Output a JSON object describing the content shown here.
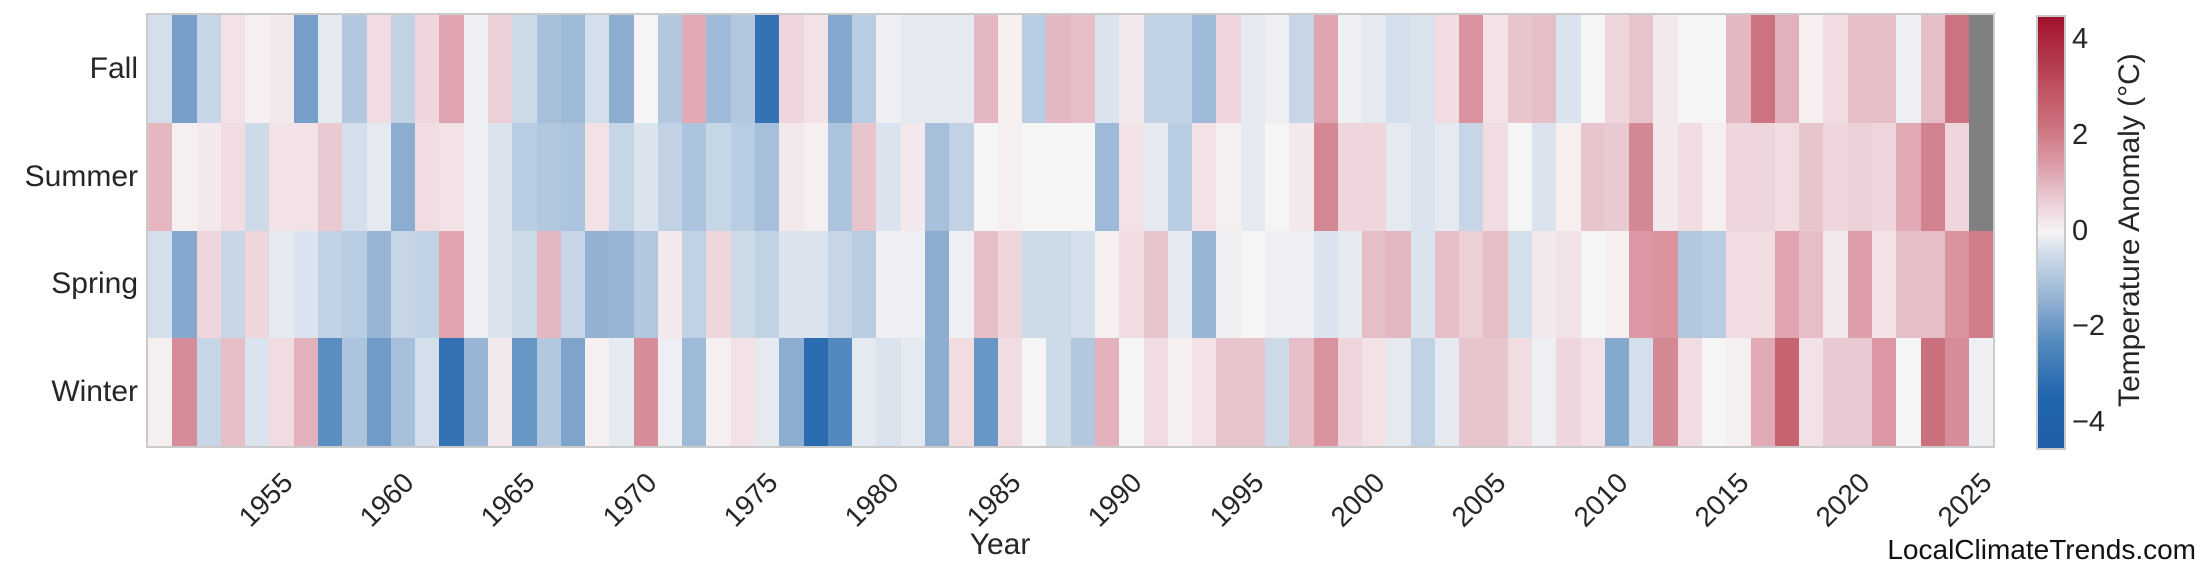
{
  "watermark": "LocalClimateTrends.com",
  "chart_data": {
    "type": "heatmap",
    "title": "",
    "xlabel": "Year",
    "rows": [
      "Fall",
      "Summer",
      "Spring",
      "Winter"
    ],
    "year_start": 1950,
    "year_end": 2025,
    "x_tick_labels": [
      "1955",
      "1960",
      "1965",
      "1970",
      "1975",
      "1980",
      "1985",
      "1990",
      "1995",
      "2000",
      "2005",
      "2010",
      "2015",
      "2020",
      "2025"
    ],
    "x_tick_years": [
      1955,
      1960,
      1965,
      1970,
      1975,
      1980,
      1985,
      1990,
      1995,
      2000,
      2005,
      2010,
      2015,
      2020,
      2025
    ],
    "series": [
      {
        "name": "Fall",
        "values": [
          -0.4,
          -1.8,
          -0.6,
          0.3,
          0.1,
          0.2,
          -1.8,
          -0.2,
          -0.9,
          0.4,
          -0.7,
          0.5,
          1.3,
          -0.1,
          0.6,
          -0.5,
          -1.1,
          -1.2,
          -0.4,
          -1.5,
          0.0,
          -0.9,
          1.2,
          -1.2,
          -0.9,
          -3.0,
          0.5,
          0.3,
          -1.6,
          -0.8,
          -0.1,
          -0.2,
          -0.2,
          -0.2,
          1.0,
          0.1,
          -0.8,
          1.0,
          0.9,
          -0.3,
          0.2,
          -0.7,
          -0.7,
          -1.2,
          0.5,
          -0.2,
          -0.1,
          -0.6,
          1.3,
          -0.1,
          -0.2,
          -0.4,
          -0.3,
          0.4,
          1.6,
          0.3,
          0.8,
          0.9,
          -0.3,
          0.0,
          0.5,
          0.8,
          0.2,
          0.0,
          0.0,
          1.0,
          2.2,
          1.1,
          0.1,
          0.4,
          0.9,
          0.9,
          -0.1,
          0.9,
          2.2,
          null
        ]
      },
      {
        "name": "Summer",
        "values": [
          1.0,
          0.1,
          0.2,
          0.4,
          -0.5,
          0.3,
          0.3,
          0.7,
          -0.4,
          -0.2,
          -1.5,
          0.4,
          0.3,
          -0.1,
          -0.3,
          -0.8,
          -0.9,
          -1.0,
          0.3,
          -0.6,
          -0.3,
          -0.7,
          -1.0,
          -0.6,
          -0.8,
          -1.1,
          0.2,
          0.1,
          -1.0,
          0.8,
          -0.3,
          0.2,
          -1.1,
          -0.7,
          0.0,
          0.1,
          0.0,
          0.0,
          0.0,
          -1.2,
          0.3,
          -0.2,
          -0.8,
          0.3,
          0.1,
          -0.2,
          0.0,
          0.2,
          1.8,
          0.5,
          0.5,
          -0.2,
          -0.3,
          -0.2,
          -0.6,
          0.4,
          0.0,
          -0.3,
          0.1,
          0.8,
          0.7,
          1.8,
          0.2,
          0.4,
          0.1,
          0.5,
          0.5,
          0.4,
          0.8,
          0.5,
          0.6,
          0.5,
          1.2,
          1.9,
          0.5,
          null
        ]
      },
      {
        "name": "Spring",
        "values": [
          -0.4,
          -1.6,
          0.5,
          -0.6,
          0.5,
          -0.2,
          -0.3,
          -0.7,
          -0.8,
          -1.3,
          -0.6,
          -0.7,
          1.3,
          -0.1,
          -0.3,
          -0.5,
          1.0,
          -0.6,
          -1.4,
          -1.3,
          -0.9,
          0.2,
          -0.7,
          0.5,
          -0.5,
          -0.7,
          -0.3,
          -0.3,
          -0.6,
          -0.8,
          -0.1,
          -0.1,
          -1.5,
          -0.1,
          0.9,
          0.5,
          -0.5,
          -0.5,
          -0.4,
          0.1,
          0.4,
          0.8,
          -0.2,
          -1.3,
          -0.1,
          0.0,
          -0.1,
          -0.1,
          -0.3,
          -0.2,
          0.9,
          1.0,
          -0.3,
          0.9,
          0.6,
          0.9,
          -0.4,
          0.2,
          0.3,
          0.0,
          0.1,
          1.5,
          1.6,
          -0.9,
          -0.8,
          0.4,
          0.4,
          1.3,
          0.9,
          0.2,
          1.4,
          0.3,
          0.9,
          0.9,
          1.6,
          2.0
        ]
      },
      {
        "name": "Winter",
        "values": [
          0.1,
          1.7,
          -0.6,
          0.9,
          -0.3,
          0.4,
          1.1,
          -2.2,
          -1.0,
          -1.9,
          -1.1,
          -0.4,
          -3.0,
          -1.3,
          0.2,
          -2.0,
          -0.9,
          -1.7,
          0.1,
          -0.2,
          1.7,
          -0.1,
          -1.2,
          0.1,
          0.3,
          -0.2,
          -1.5,
          -3.2,
          -2.3,
          -0.2,
          -0.3,
          -0.2,
          -1.5,
          0.4,
          -2.0,
          0.4,
          0.0,
          -0.5,
          -0.9,
          1.1,
          0.0,
          0.4,
          0.1,
          0.3,
          0.8,
          0.8,
          -0.5,
          0.9,
          1.6,
          0.5,
          0.3,
          -0.2,
          -0.7,
          -0.2,
          0.8,
          0.8,
          0.4,
          -0.1,
          0.5,
          0.3,
          -1.6,
          -0.4,
          1.8,
          0.4,
          0.0,
          0.1,
          1.2,
          2.6,
          0.3,
          0.7,
          0.7,
          1.5,
          0.0,
          2.3,
          1.7,
          -0.1
        ]
      }
    ],
    "colorbar": {
      "label": "Temperature Anomaly (°C)",
      "tick_labels": [
        "4",
        "2",
        "0",
        "−2",
        "−4"
      ],
      "tick_values": [
        4,
        2,
        0,
        -2,
        -4
      ],
      "vmin": -4.5,
      "vmax": 4.5
    },
    "missing_color": "#808080",
    "colormap_anchors": [
      [
        -4.5,
        "#1d5fa5"
      ],
      [
        -3.4,
        "#2166ac"
      ],
      [
        -2.3,
        "#5389bf"
      ],
      [
        -1.5,
        "#8cacd0"
      ],
      [
        -0.8,
        "#b9cde2"
      ],
      [
        -0.3,
        "#dbe4ee"
      ],
      [
        0.0,
        "#f6f5f5"
      ],
      [
        0.3,
        "#f2e2e6"
      ],
      [
        0.8,
        "#e8c4cd"
      ],
      [
        1.5,
        "#db97a3"
      ],
      [
        2.2,
        "#cb737f"
      ],
      [
        3.0,
        "#c05263"
      ],
      [
        4.5,
        "#a0112a"
      ]
    ],
    "grid": false,
    "legend_position": "right-colorbar"
  }
}
